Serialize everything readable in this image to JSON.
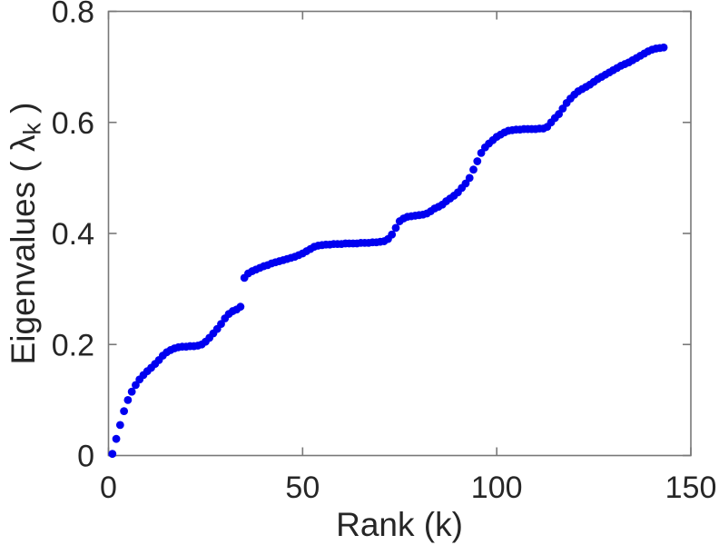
{
  "chart_data": {
    "type": "scatter",
    "title": "",
    "xlabel": "Rank (k)",
    "ylabel": "Eigenvalues ( λ_k )",
    "ylabel_prefix": "Eigenvalues ( λ",
    "ylabel_sub": "k",
    "ylabel_suffix": " )",
    "xlim": [
      0,
      150
    ],
    "ylim": [
      0,
      0.8
    ],
    "xticks": [
      0,
      50,
      100,
      150
    ],
    "xtick_labels": [
      "0",
      "50",
      "100",
      "150"
    ],
    "yticks": [
      0,
      0.2,
      0.4,
      0.6,
      0.8
    ],
    "ytick_labels": [
      "0",
      "0.2",
      "0.4",
      "0.6",
      "0.8"
    ],
    "grid": false,
    "legend": null,
    "marker": "filled-circle",
    "marker_color": "#0000F0",
    "axis_color": "#787878",
    "text_color": "#262626",
    "x_start": 1,
    "values": [
      0.003,
      0.03,
      0.055,
      0.08,
      0.1,
      0.115,
      0.127,
      0.137,
      0.145,
      0.152,
      0.158,
      0.165,
      0.172,
      0.18,
      0.186,
      0.19,
      0.193,
      0.195,
      0.196,
      0.196,
      0.197,
      0.197,
      0.198,
      0.2,
      0.205,
      0.212,
      0.22,
      0.228,
      0.237,
      0.247,
      0.255,
      0.26,
      0.263,
      0.268,
      0.32,
      0.328,
      0.332,
      0.335,
      0.338,
      0.341,
      0.343,
      0.346,
      0.348,
      0.35,
      0.352,
      0.354,
      0.356,
      0.358,
      0.361,
      0.364,
      0.368,
      0.372,
      0.376,
      0.378,
      0.379,
      0.38,
      0.38,
      0.381,
      0.381,
      0.381,
      0.382,
      0.382,
      0.382,
      0.382,
      0.383,
      0.383,
      0.383,
      0.384,
      0.384,
      0.385,
      0.386,
      0.39,
      0.398,
      0.41,
      0.422,
      0.427,
      0.43,
      0.431,
      0.432,
      0.433,
      0.434,
      0.436,
      0.44,
      0.445,
      0.448,
      0.452,
      0.458,
      0.463,
      0.468,
      0.474,
      0.482,
      0.49,
      0.5,
      0.515,
      0.53,
      0.545,
      0.555,
      0.562,
      0.568,
      0.574,
      0.578,
      0.582,
      0.585,
      0.586,
      0.587,
      0.587,
      0.588,
      0.588,
      0.588,
      0.588,
      0.589,
      0.589,
      0.592,
      0.6,
      0.608,
      0.615,
      0.625,
      0.635,
      0.643,
      0.65,
      0.656,
      0.66,
      0.664,
      0.668,
      0.673,
      0.678,
      0.682,
      0.686,
      0.69,
      0.694,
      0.698,
      0.702,
      0.705,
      0.708,
      0.712,
      0.716,
      0.72,
      0.724,
      0.728,
      0.731,
      0.733,
      0.734,
      0.735
    ]
  }
}
